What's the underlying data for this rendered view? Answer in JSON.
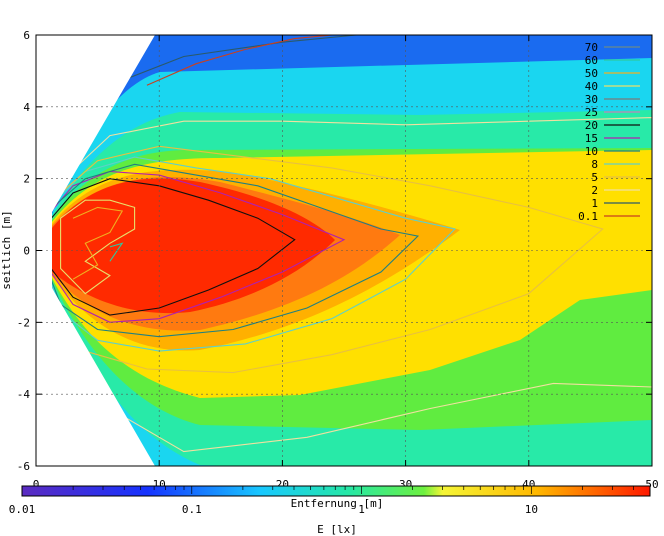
{
  "chart_data": {
    "type": "heatmap",
    "title": "",
    "xlabel": "Entfernung [m]",
    "ylabel": "seitlich [m]",
    "xlim": [
      0,
      50
    ],
    "ylim": [
      -6,
      6
    ],
    "x_ticks": [
      "0",
      "10",
      "20",
      "30",
      "40",
      "50"
    ],
    "y_ticks": [
      "-6",
      "-4",
      "-2",
      "0",
      "2",
      "4",
      "6"
    ],
    "grid": true,
    "legend_position": "top-right",
    "colorbar": {
      "label": "E [lx]",
      "scale": "log",
      "range": [
        0.01,
        50
      ],
      "tick_labels": [
        "0.01",
        "0.1",
        "1",
        "10"
      ]
    },
    "contour_levels": [
      {
        "label": "70",
        "color": "#6a8a8a"
      },
      {
        "label": "60",
        "color": "#2fc9a0"
      },
      {
        "label": "50",
        "color": "#f0b020"
      },
      {
        "label": "40",
        "color": "#e9e06a"
      },
      {
        "label": "30",
        "color": "#7a7a7a"
      },
      {
        "label": "25",
        "color": "#c080c0"
      },
      {
        "label": "20",
        "color": "#101010"
      },
      {
        "label": "15",
        "color": "#b020b0"
      },
      {
        "label": "10",
        "color": "#208080"
      },
      {
        "label": "8",
        "color": "#60d0c8"
      },
      {
        "label": "5",
        "color": "#e8c040"
      },
      {
        "label": "2",
        "color": "#f0e0a0"
      },
      {
        "label": "1",
        "color": "#2a5a6a"
      },
      {
        "label": "0.1",
        "color": "#c84020"
      }
    ],
    "contours": [
      {
        "level": "20",
        "points": [
          [
            1,
            0.8
          ],
          [
            3,
            1.6
          ],
          [
            6,
            2
          ],
          [
            10,
            1.8
          ],
          [
            14,
            1.4
          ],
          [
            18,
            0.9
          ],
          [
            21,
            0.3
          ],
          [
            18,
            -0.5
          ],
          [
            14,
            -1.1
          ],
          [
            10,
            -1.6
          ],
          [
            6,
            -1.8
          ],
          [
            3,
            -1.3
          ],
          [
            1,
            -0.4
          ]
        ]
      },
      {
        "level": "15",
        "points": [
          [
            1,
            1
          ],
          [
            3,
            1.8
          ],
          [
            6,
            2.2
          ],
          [
            10,
            2.1
          ],
          [
            15,
            1.6
          ],
          [
            20,
            1
          ],
          [
            25,
            0.3
          ],
          [
            20,
            -0.6
          ],
          [
            15,
            -1.3
          ],
          [
            10,
            -1.9
          ],
          [
            6,
            -2
          ],
          [
            3,
            -1.5
          ],
          [
            1,
            -0.5
          ]
        ]
      },
      {
        "level": "10",
        "points": [
          [
            1,
            1.1
          ],
          [
            4,
            2
          ],
          [
            8,
            2.4
          ],
          [
            13,
            2.1
          ],
          [
            18,
            1.8
          ],
          [
            23,
            1.2
          ],
          [
            28,
            0.6
          ],
          [
            31,
            0.4
          ],
          [
            28,
            -0.6
          ],
          [
            22,
            -1.6
          ],
          [
            16,
            -2.2
          ],
          [
            10,
            -2.4
          ],
          [
            5,
            -2.2
          ],
          [
            2,
            -1.5
          ],
          [
            1,
            -0.6
          ]
        ]
      },
      {
        "level": "8",
        "points": [
          [
            1,
            1.2
          ],
          [
            4,
            2.2
          ],
          [
            8,
            2.6
          ],
          [
            13,
            2.3
          ],
          [
            19,
            2
          ],
          [
            25,
            1.4
          ],
          [
            30,
            0.9
          ],
          [
            34,
            0.6
          ],
          [
            30,
            -0.8
          ],
          [
            24,
            -1.9
          ],
          [
            17,
            -2.6
          ],
          [
            10,
            -2.8
          ],
          [
            5,
            -2.5
          ],
          [
            2,
            -1.7
          ],
          [
            1,
            -0.7
          ]
        ]
      },
      {
        "level": "5",
        "points": [
          [
            1,
            1.3
          ],
          [
            5,
            2.5
          ],
          [
            10,
            2.9
          ],
          [
            17,
            2.6
          ],
          [
            24,
            2.3
          ],
          [
            32,
            1.8
          ],
          [
            40,
            1.2
          ],
          [
            46,
            0.6
          ],
          [
            40,
            -1.2
          ],
          [
            32,
            -2.2
          ],
          [
            24,
            -2.9
          ],
          [
            16,
            -3.4
          ],
          [
            9,
            -3.3
          ],
          [
            4,
            -2.8
          ],
          [
            1,
            -1
          ]
        ]
      },
      {
        "level": "2",
        "points": [
          [
            1,
            1.6
          ],
          [
            6,
            3.2
          ],
          [
            12,
            3.6
          ],
          [
            20,
            3.6
          ],
          [
            30,
            3.5
          ],
          [
            40,
            3.6
          ],
          [
            50,
            3.7
          ],
          [
            50,
            -3.8
          ],
          [
            42,
            -3.7
          ],
          [
            32,
            -4.4
          ],
          [
            22,
            -5.2
          ],
          [
            12,
            -5.6
          ],
          [
            6,
            -4.4
          ],
          [
            2,
            -2.4
          ],
          [
            1,
            -1.2
          ]
        ]
      },
      {
        "level": "1",
        "points": [
          [
            2,
            3
          ],
          [
            6,
            4.6
          ],
          [
            12,
            5.4
          ],
          [
            20,
            5.8
          ],
          [
            26,
            6
          ]
        ]
      },
      {
        "level": "0.1",
        "points": [
          [
            9,
            4.6
          ],
          [
            13,
            5.2
          ],
          [
            17,
            5.6
          ],
          [
            21,
            5.9
          ],
          [
            24,
            6
          ]
        ]
      },
      {
        "level": "40",
        "points": [
          [
            2,
            0.9
          ],
          [
            4,
            1.4
          ],
          [
            6,
            1.4
          ],
          [
            8,
            1.2
          ],
          [
            8,
            0.6
          ],
          [
            6,
            0.2
          ],
          [
            4,
            -0.3
          ],
          [
            6,
            -0.7
          ],
          [
            4,
            -1.2
          ],
          [
            2,
            -0.5
          ]
        ]
      },
      {
        "level": "50",
        "points": [
          [
            3,
            0.9
          ],
          [
            5,
            1.2
          ],
          [
            7,
            1.1
          ],
          [
            6,
            0.5
          ],
          [
            4,
            0.2
          ],
          [
            5,
            -0.4
          ],
          [
            3,
            -0.8
          ]
        ]
      },
      {
        "level": "60",
        "points": [
          [
            6,
            0.1
          ],
          [
            7,
            0.2
          ],
          [
            6.6,
            0
          ],
          [
            6,
            -0.3
          ]
        ]
      }
    ]
  }
}
